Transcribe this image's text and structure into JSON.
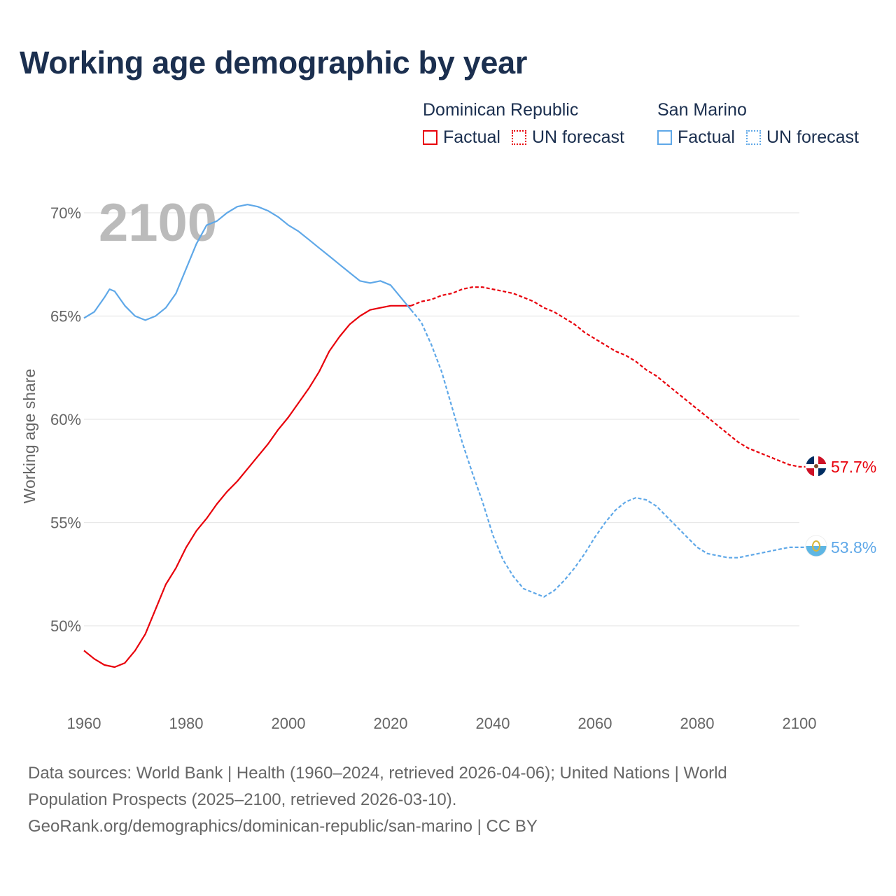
{
  "title": "Working age demographic by year",
  "legend": [
    {
      "country": "Dominican Republic",
      "color": "#e8000b",
      "factual_label": "Factual",
      "forecast_label": "UN forecast"
    },
    {
      "country": "San Marino",
      "color": "#5fa8e8",
      "factual_label": "Factual",
      "forecast_label": "UN forecast"
    }
  ],
  "year_watermark": "2100",
  "chart_data": {
    "type": "line",
    "title": "Working age demographic by year",
    "xlabel": "",
    "ylabel": "Working age share",
    "xlim": [
      1960,
      2100
    ],
    "ylim": [
      47,
      71.5
    ],
    "x_ticks": [
      1960,
      1980,
      2000,
      2020,
      2040,
      2060,
      2080,
      2100
    ],
    "x_tick_labels": [
      "1960",
      "1980",
      "2000",
      "2020",
      "2040",
      "2060",
      "2080",
      "2100"
    ],
    "y_ticks": [
      50,
      55,
      60,
      65,
      70
    ],
    "y_tick_labels": [
      "50%",
      "55%",
      "60%",
      "65%",
      "70%"
    ],
    "series": [
      {
        "name": "Dominican Republic",
        "color": "#e8000b",
        "end_label": "57.7%",
        "factual": {
          "x": [
            1960,
            1962,
            1964,
            1966,
            1968,
            1970,
            1972,
            1974,
            1976,
            1978,
            1980,
            1982,
            1984,
            1986,
            1988,
            1990,
            1992,
            1994,
            1996,
            1998,
            2000,
            2002,
            2004,
            2006,
            2008,
            2010,
            2012,
            2014,
            2016,
            2018,
            2020,
            2022,
            2024
          ],
          "y": [
            48.8,
            48.4,
            48.1,
            48.0,
            48.2,
            48.8,
            49.6,
            50.8,
            52.0,
            52.8,
            53.8,
            54.6,
            55.2,
            55.9,
            56.5,
            57.0,
            57.6,
            58.2,
            58.8,
            59.5,
            60.1,
            60.8,
            61.5,
            62.3,
            63.3,
            64.0,
            64.6,
            65.0,
            65.3,
            65.4,
            65.5,
            65.5,
            65.5
          ]
        },
        "forecast": {
          "x": [
            2024,
            2026,
            2028,
            2030,
            2032,
            2034,
            2036,
            2038,
            2040,
            2042,
            2044,
            2046,
            2048,
            2050,
            2052,
            2054,
            2056,
            2058,
            2060,
            2062,
            2064,
            2066,
            2068,
            2070,
            2072,
            2074,
            2076,
            2078,
            2080,
            2082,
            2084,
            2086,
            2088,
            2090,
            2092,
            2094,
            2096,
            2098,
            2100,
            2103
          ],
          "y": [
            65.5,
            65.7,
            65.8,
            66.0,
            66.1,
            66.3,
            66.4,
            66.4,
            66.3,
            66.2,
            66.1,
            65.9,
            65.7,
            65.4,
            65.2,
            64.9,
            64.6,
            64.2,
            63.9,
            63.6,
            63.3,
            63.1,
            62.8,
            62.4,
            62.1,
            61.7,
            61.3,
            60.9,
            60.5,
            60.1,
            59.7,
            59.3,
            58.9,
            58.6,
            58.4,
            58.2,
            58.0,
            57.8,
            57.7,
            57.7
          ]
        }
      },
      {
        "name": "San Marino",
        "color": "#5fa8e8",
        "end_label": "53.8%",
        "factual": {
          "x": [
            1960,
            1962,
            1964,
            1965,
            1966,
            1968,
            1970,
            1972,
            1974,
            1976,
            1978,
            1980,
            1982,
            1984,
            1986,
            1988,
            1990,
            1992,
            1994,
            1996,
            1998,
            2000,
            2002,
            2004,
            2006,
            2008,
            2010,
            2012,
            2014,
            2016,
            2018,
            2020,
            2022,
            2024
          ],
          "y": [
            64.9,
            65.2,
            65.9,
            66.3,
            66.2,
            65.5,
            65.0,
            64.8,
            65.0,
            65.4,
            66.1,
            67.3,
            68.5,
            69.4,
            69.6,
            70.0,
            70.3,
            70.4,
            70.3,
            70.1,
            69.8,
            69.4,
            69.1,
            68.7,
            68.3,
            67.9,
            67.5,
            67.1,
            66.7,
            66.6,
            66.7,
            66.5,
            65.9,
            65.3
          ]
        },
        "forecast": {
          "x": [
            2024,
            2026,
            2028,
            2030,
            2032,
            2034,
            2036,
            2038,
            2040,
            2042,
            2044,
            2046,
            2048,
            2050,
            2052,
            2054,
            2056,
            2058,
            2060,
            2062,
            2064,
            2066,
            2068,
            2070,
            2072,
            2074,
            2076,
            2078,
            2080,
            2082,
            2084,
            2086,
            2088,
            2090,
            2092,
            2094,
            2096,
            2098,
            2100,
            2103
          ],
          "y": [
            65.3,
            64.7,
            63.6,
            62.3,
            60.6,
            58.9,
            57.4,
            56.0,
            54.4,
            53.2,
            52.4,
            51.8,
            51.6,
            51.4,
            51.7,
            52.2,
            52.8,
            53.5,
            54.3,
            55.0,
            55.6,
            56.0,
            56.2,
            56.1,
            55.8,
            55.3,
            54.8,
            54.3,
            53.8,
            53.5,
            53.4,
            53.3,
            53.3,
            53.4,
            53.5,
            53.6,
            53.7,
            53.8,
            53.8,
            53.8
          ]
        }
      }
    ]
  },
  "footer": {
    "line1": "Data sources: World Bank | Health (1960–2024, retrieved 2026-04-06); United Nations | World",
    "line2": "Population Prospects (2025–2100, retrieved 2026-03-10).",
    "line3": "GeoRank.org/demographics/dominican-republic/san-marino | CC BY"
  }
}
